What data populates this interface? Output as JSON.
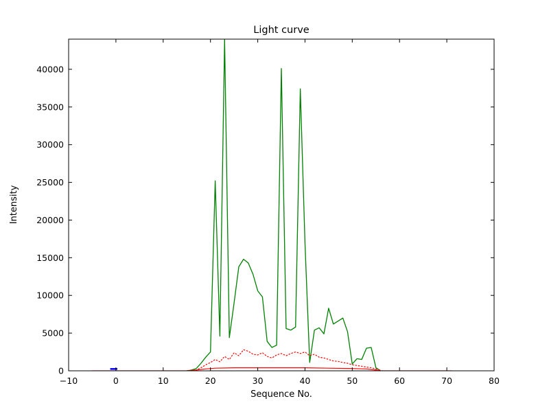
{
  "chart_data": {
    "type": "line",
    "title": "Light curve",
    "xlabel": "Sequence No.",
    "ylabel": "Intensity",
    "xlim": [
      -10,
      80
    ],
    "ylim": [
      0,
      44000
    ],
    "grid": false,
    "legend": "none",
    "xticks": [
      -10,
      0,
      10,
      20,
      30,
      40,
      50,
      60,
      70,
      80
    ],
    "xtick_labels": [
      "−10",
      "0",
      "10",
      "20",
      "30",
      "40",
      "50",
      "60",
      "70",
      "80"
    ],
    "yticks": [
      0,
      5000,
      10000,
      15000,
      20000,
      25000,
      30000,
      35000,
      40000
    ],
    "ytick_labels": [
      "0",
      "5000",
      "10000",
      "15000",
      "20000",
      "25000",
      "30000",
      "35000",
      "40000"
    ],
    "series": [
      {
        "name": "intensity-green",
        "color": "#008000",
        "style": "solid",
        "width": 1.3,
        "x": [
          15,
          16,
          17,
          18,
          19,
          20,
          21,
          22,
          23,
          24,
          25,
          26,
          27,
          28,
          29,
          30,
          31,
          32,
          33,
          34,
          35,
          36,
          37,
          38,
          39,
          40,
          41,
          42,
          43,
          44,
          45,
          46,
          47,
          48,
          49,
          50,
          51,
          52,
          53,
          54,
          55,
          56
        ],
        "y": [
          0,
          100,
          300,
          1000,
          1800,
          2500,
          25200,
          4600,
          44000,
          4400,
          9000,
          13800,
          14800,
          14300,
          12800,
          10600,
          9800,
          3900,
          3100,
          3400,
          40100,
          5600,
          5400,
          5800,
          37400,
          17000,
          1100,
          5400,
          5700,
          4900,
          8300,
          6200,
          6600,
          7000,
          5200,
          900,
          1600,
          1500,
          3000,
          3100,
          400,
          0
        ]
      },
      {
        "name": "background-red-dotted",
        "color": "#ff0000",
        "style": "dotted",
        "width": 1.2,
        "x": [
          15,
          16,
          17,
          18,
          19,
          20,
          21,
          22,
          23,
          24,
          25,
          26,
          27,
          28,
          29,
          30,
          31,
          32,
          33,
          34,
          35,
          36,
          37,
          38,
          39,
          40,
          41,
          42,
          43,
          44,
          45,
          46,
          47,
          48,
          49,
          50,
          51,
          52,
          53,
          54,
          55,
          56
        ],
        "y": [
          0,
          0,
          100,
          400,
          800,
          1100,
          1500,
          1200,
          1900,
          1500,
          2400,
          2000,
          2800,
          2600,
          2200,
          2100,
          2400,
          1900,
          1700,
          2100,
          2300,
          2000,
          2300,
          2500,
          2300,
          2500,
          2000,
          2200,
          1800,
          1700,
          1500,
          1300,
          1250,
          1100,
          1000,
          800,
          700,
          600,
          500,
          400,
          250,
          100
        ]
      },
      {
        "name": "baseline-red-solid",
        "color": "#ff0000",
        "style": "solid",
        "width": 1.2,
        "x": [
          -5,
          0,
          5,
          10,
          15,
          17,
          19,
          21,
          25,
          30,
          35,
          40,
          45,
          50,
          53,
          55,
          56,
          60,
          65,
          71
        ],
        "y": [
          0,
          0,
          0,
          0,
          0,
          100,
          250,
          350,
          400,
          400,
          400,
          400,
          350,
          300,
          250,
          100,
          0,
          0,
          0,
          0
        ]
      },
      {
        "name": "blue-segment",
        "color": "#0000ff",
        "style": "solid",
        "width": 2.5,
        "x": [
          -1.2,
          0.3
        ],
        "y": [
          250,
          250
        ]
      }
    ]
  },
  "colors": {
    "background": "#ffffff",
    "axis": "#000000",
    "green_line": "#008000",
    "red_line": "#ff0000",
    "blue_line": "#0000ff"
  }
}
